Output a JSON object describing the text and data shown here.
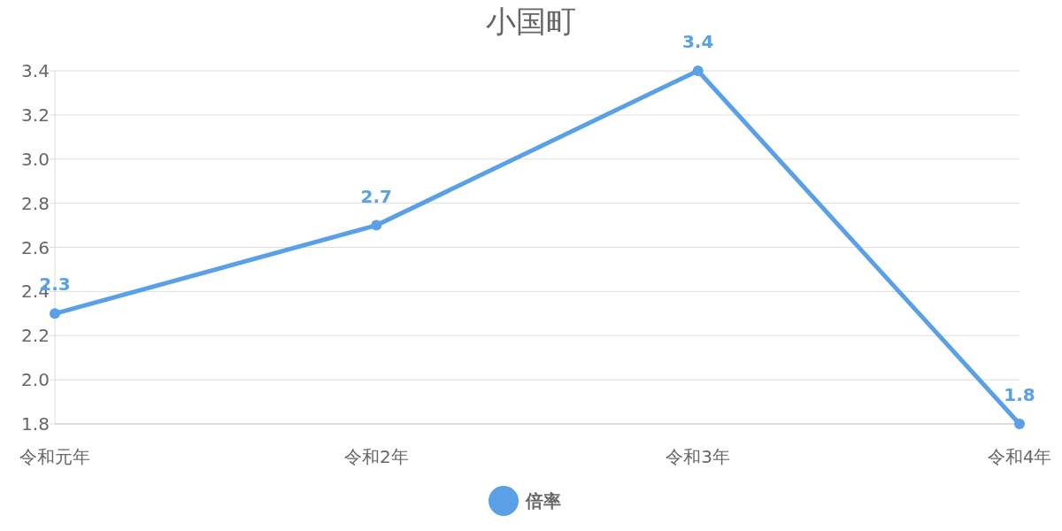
{
  "chart_data": {
    "type": "line",
    "title": "小国町",
    "categories": [
      "令和元年",
      "令和2年",
      "令和3年",
      "令和4年"
    ],
    "series": [
      {
        "name": "倍率",
        "color": "#5aa0e6",
        "values": [
          2.3,
          2.7,
          3.4,
          1.8
        ]
      }
    ],
    "ylim": [
      1.8,
      3.4
    ],
    "yticks": [
      1.8,
      {
        "value": 2,
        "label": "2.0"
      },
      2.2,
      2.4,
      2.6,
      2.8,
      {
        "value": 3,
        "label": "3.0"
      },
      3.2,
      3.4
    ],
    "grid": "y",
    "legend": "bottom",
    "marker": "circle",
    "data_labels": true
  }
}
